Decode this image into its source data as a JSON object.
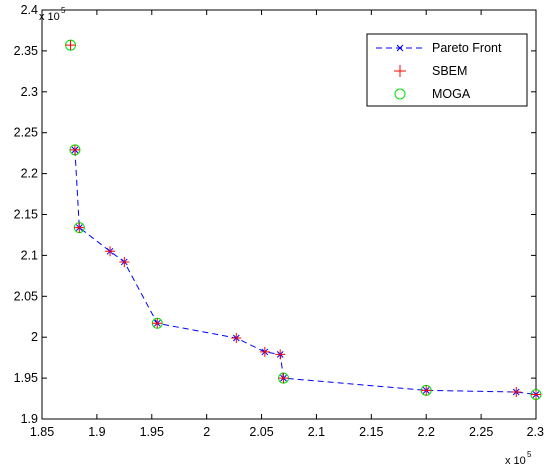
{
  "chart_data": {
    "type": "scatter",
    "xlim": [
      185000,
      230000
    ],
    "ylim": [
      190000,
      240000
    ],
    "x_ticks": [
      1.85,
      1.9,
      1.95,
      2,
      2.05,
      2.1,
      2.15,
      2.2,
      2.25,
      2.3
    ],
    "y_ticks": [
      1.9,
      1.95,
      2,
      2.05,
      2.1,
      2.15,
      2.2,
      2.25,
      2.3,
      2.35,
      2.4
    ],
    "x_multiplier_base": "x 10",
    "x_multiplier_exp": "5",
    "y_multiplier_base": "x 10",
    "y_multiplier_exp": "5",
    "grid": false,
    "legend_position": "top-right",
    "colors": {
      "pareto": "#0000ff",
      "sbem": "#ff0000",
      "moga": "#00e000",
      "axis": "#000000"
    },
    "series": [
      {
        "name": "Pareto Front",
        "style": "dashed-line-x-marker",
        "x": [
          188000,
          188400,
          191200,
          192500,
          195500,
          202700,
          205300,
          206700,
          207000,
          220000,
          228200,
          230000
        ],
        "y": [
          222900,
          213400,
          210500,
          209200,
          201700,
          199900,
          198200,
          197900,
          195000,
          193500,
          193300,
          193000
        ]
      },
      {
        "name": "SBEM",
        "style": "plus-marker",
        "x": [
          187600,
          188000,
          188400,
          191200,
          192500,
          195500,
          202700,
          205300,
          206700,
          207000,
          220000,
          228200,
          230000
        ],
        "y": [
          235700,
          222900,
          213400,
          210500,
          209200,
          201700,
          199900,
          198200,
          197900,
          195000,
          193500,
          193300,
          193000
        ]
      },
      {
        "name": "MOGA",
        "style": "circle-marker",
        "x": [
          187600,
          188000,
          188400,
          195500,
          207000,
          220000,
          230000
        ],
        "y": [
          235700,
          222900,
          213400,
          201700,
          195000,
          193500,
          193000
        ]
      }
    ]
  }
}
